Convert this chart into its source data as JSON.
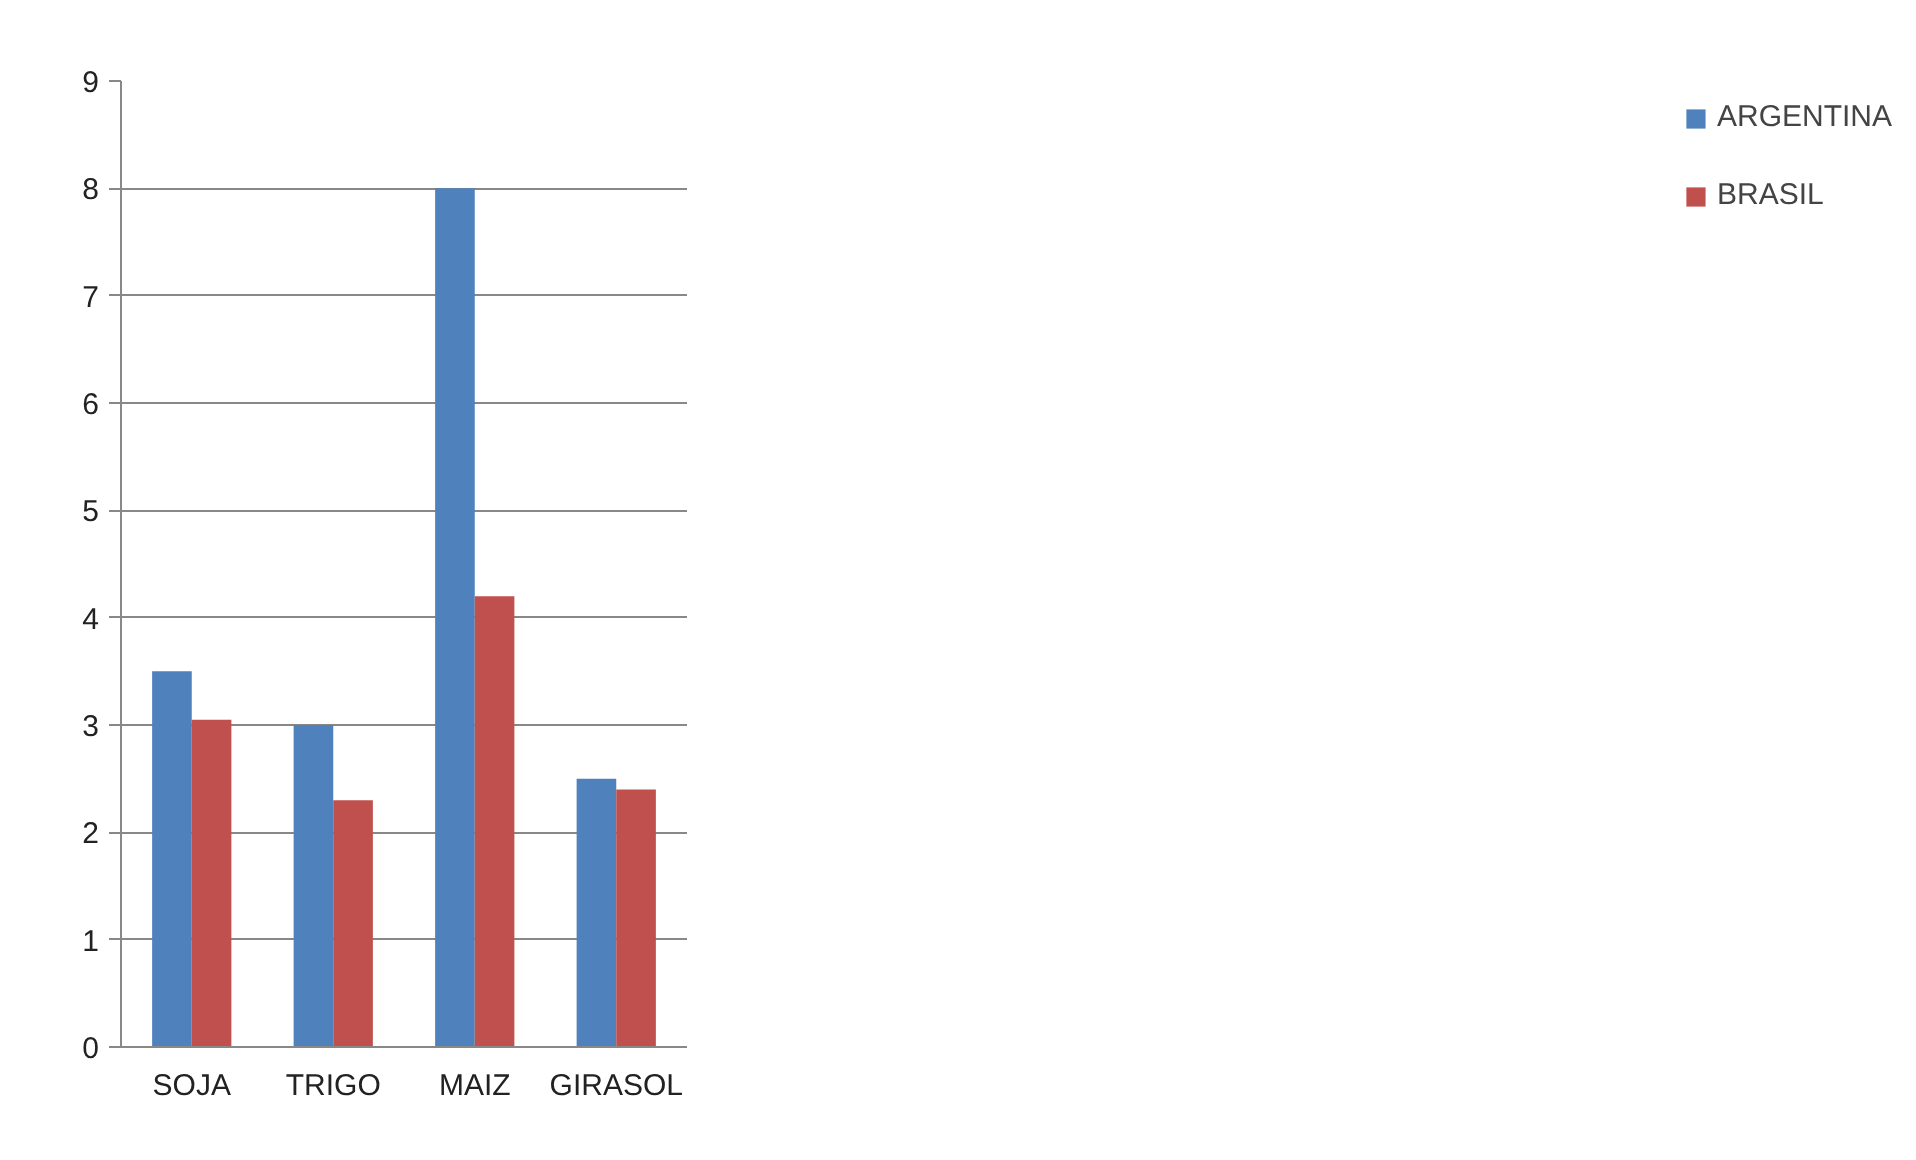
{
  "chart_data": {
    "type": "bar",
    "categories": [
      "SOJA",
      "TRIGO",
      "MAIZ",
      "GIRASOL"
    ],
    "series": [
      {
        "name": "ARGENTINA",
        "color": "#4f81bd",
        "values": [
          3.5,
          3.0,
          8.0,
          2.5
        ]
      },
      {
        "name": "BRASIL",
        "color": "#c0504d",
        "values": [
          3.05,
          2.3,
          4.2,
          2.4
        ]
      }
    ],
    "ylim": [
      0,
      9
    ],
    "yticks": [
      0,
      1,
      2,
      3,
      4,
      5,
      6,
      7,
      8,
      9
    ],
    "grid": "y",
    "legend": "right"
  }
}
